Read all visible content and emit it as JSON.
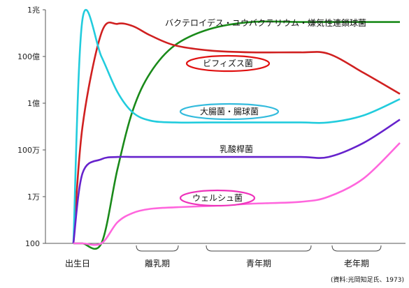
{
  "chart_data": {
    "type": "line",
    "yscale": "log",
    "ylim": [
      100,
      1000000000000
    ],
    "grid": false,
    "yticks": [
      {
        "value": 1000000000000,
        "label": "1兆"
      },
      {
        "value": 10000000000,
        "label": "100億"
      },
      {
        "value": 100000000,
        "label": "1億"
      },
      {
        "value": 1000000,
        "label": "100万"
      },
      {
        "value": 10000,
        "label": "1万"
      },
      {
        "value": 100,
        "label": "100"
      }
    ],
    "stages": [
      {
        "label": "出生日",
        "bracket": false
      },
      {
        "label": "離乳期",
        "bracket": true
      },
      {
        "label": "青年期",
        "bracket": true
      },
      {
        "label": "老年期",
        "bracket": true
      }
    ],
    "series": [
      {
        "name": "バクテロイデス・ユウバクテリウム・嫌気性連鎖球菌",
        "color": "#1a8a1a",
        "circled": false,
        "circle_color": "",
        "values": [
          100,
          100,
          100,
          150000,
          50000000,
          2000000000,
          30000000000,
          150000000000,
          300000000000,
          300000000000,
          300000000000,
          300000000000,
          300000000000
        ]
      },
      {
        "name": "ビフィズス菌",
        "color": "#d02020",
        "circled": true,
        "circle_color": "#e01010",
        "values": [
          100,
          10000000,
          100000000000,
          250000000000,
          200000000000,
          80000000000,
          30000000000,
          18000000000,
          15000000000,
          15000000000,
          13000000000,
          2000000000,
          250000000
        ]
      },
      {
        "name": "大腸菌・腸球菌",
        "color": "#22ccdd",
        "circled": true,
        "circle_color": "#33bbdd",
        "values": [
          100,
          400000000000,
          10000000000,
          300000000,
          40000000,
          18000000,
          15000000,
          15000000,
          15000000,
          15000000,
          15000000,
          30000000,
          150000000
        ]
      },
      {
        "name": "乳酸桿菌",
        "color": "#6622cc",
        "circled": false,
        "circle_color": "",
        "values": [
          100,
          100000,
          400000,
          500000,
          500000,
          500000,
          500000,
          500000,
          500000,
          500000,
          500000,
          2000000,
          20000000
        ]
      },
      {
        "name": "ウェルシュ菌",
        "color": "#ff66dd",
        "circled": true,
        "circle_color": "#ee33bb",
        "values": [
          100,
          100,
          100,
          800,
          2000,
          3000,
          3500,
          4000,
          5000,
          6000,
          10000,
          60000,
          2000000
        ]
      }
    ]
  },
  "source": "(資料:光岡知足氏、1973)"
}
